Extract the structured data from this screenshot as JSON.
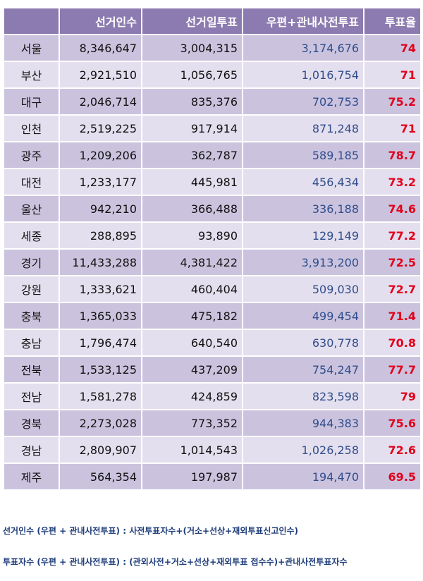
{
  "table": {
    "header": [
      "",
      "선거인수",
      "선거일투표",
      "우편+관내사전투표",
      "투표율"
    ],
    "rows": [
      [
        "서울",
        "8,346,647",
        "3,004,315",
        "3,174,676",
        "74"
      ],
      [
        "부산",
        "2,921,510",
        "1,056,765",
        "1,016,754",
        "71"
      ],
      [
        "대구",
        "2,046,714",
        "835,376",
        "702,753",
        "75.2"
      ],
      [
        "인천",
        "2,519,225",
        "917,914",
        "871,248",
        "71"
      ],
      [
        "광주",
        "1,209,206",
        "362,787",
        "589,185",
        "78.7"
      ],
      [
        "대전",
        "1,233,177",
        "445,981",
        "456,434",
        "73.2"
      ],
      [
        "울산",
        "942,210",
        "366,488",
        "336,188",
        "74.6"
      ],
      [
        "세종",
        "288,895",
        "93,890",
        "129,149",
        "77.2"
      ],
      [
        "경기",
        "11,433,288",
        "4,381,422",
        "3,913,200",
        "72.5"
      ],
      [
        "강원",
        "1,333,621",
        "460,404",
        "509,030",
        "72.7"
      ],
      [
        "충북",
        "1,365,033",
        "475,182",
        "499,454",
        "71.4"
      ],
      [
        "충남",
        "1,796,474",
        "640,540",
        "630,778",
        "70.8"
      ],
      [
        "전북",
        "1,533,125",
        "437,209",
        "754,247",
        "77.7"
      ],
      [
        "전남",
        "1,581,278",
        "424,859",
        "823,598",
        "79"
      ],
      [
        "경북",
        "2,273,028",
        "773,352",
        "944,383",
        "75.6"
      ],
      [
        "경남",
        "2,809,907",
        "1,014,543",
        "1,026,258",
        "72.6"
      ],
      [
        "제주",
        "564,354",
        "197,987",
        "194,470",
        "69.5"
      ]
    ]
  },
  "notes": [
    "선거인수 (우편 + 관내사전투표) : 사전투표자수+(거소+선상+재외투표신고인수)",
    "투표자수 (우편 + 관내사전투표) : (관외사전+거소+선상+재외투표 접수수)+관내사전투표자수"
  ]
}
